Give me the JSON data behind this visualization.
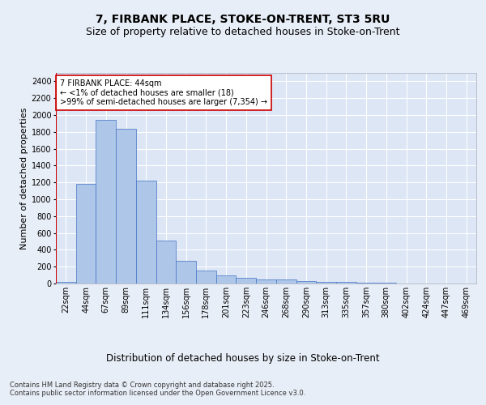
{
  "title1": "7, FIRBANK PLACE, STOKE-ON-TRENT, ST3 5RU",
  "title2": "Size of property relative to detached houses in Stoke-on-Trent",
  "xlabel": "Distribution of detached houses by size in Stoke-on-Trent",
  "ylabel": "Number of detached properties",
  "categories": [
    "22sqm",
    "44sqm",
    "67sqm",
    "89sqm",
    "111sqm",
    "134sqm",
    "156sqm",
    "178sqm",
    "201sqm",
    "223sqm",
    "246sqm",
    "268sqm",
    "290sqm",
    "313sqm",
    "335sqm",
    "357sqm",
    "380sqm",
    "402sqm",
    "424sqm",
    "447sqm",
    "469sqm"
  ],
  "values": [
    18,
    1180,
    1940,
    1840,
    1220,
    510,
    270,
    150,
    100,
    65,
    50,
    45,
    30,
    20,
    15,
    8,
    5,
    3,
    2,
    1,
    0
  ],
  "bar_color": "#aec6e8",
  "bar_edge_color": "#4472c4",
  "highlight_color": "#cc0000",
  "annotation_text": "7 FIRBANK PLACE: 44sqm\n← <1% of detached houses are smaller (18)\n>99% of semi-detached houses are larger (7,354) →",
  "annotation_box_color": "#ffffff",
  "annotation_box_edge": "#cc0000",
  "ylim": [
    0,
    2500
  ],
  "yticks": [
    0,
    200,
    400,
    600,
    800,
    1000,
    1200,
    1400,
    1600,
    1800,
    2000,
    2200,
    2400
  ],
  "background_color": "#e8eef7",
  "plot_bg_color": "#dce6f5",
  "grid_color": "#ffffff",
  "footer_text": "Contains HM Land Registry data © Crown copyright and database right 2025.\nContains public sector information licensed under the Open Government Licence v3.0.",
  "title1_fontsize": 10,
  "title2_fontsize": 9,
  "xlabel_fontsize": 8.5,
  "ylabel_fontsize": 8,
  "tick_fontsize": 7,
  "annotation_fontsize": 7,
  "footer_fontsize": 6
}
